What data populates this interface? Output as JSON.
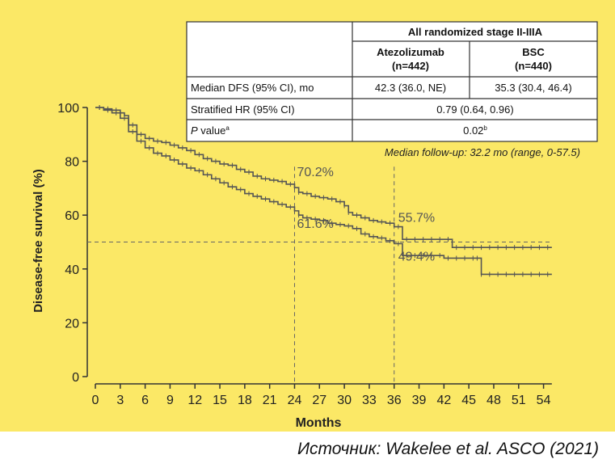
{
  "chart_data": {
    "type": "line",
    "title": "",
    "xlabel": "Months",
    "ylabel": "Disease-free survival (%)",
    "xlim": [
      0,
      55
    ],
    "ylim": [
      0,
      100
    ],
    "xticks": [
      "0",
      "3",
      "6",
      "9",
      "12",
      "15",
      "18",
      "21",
      "24",
      "27",
      "30",
      "33",
      "36",
      "39",
      "42",
      "45",
      "48",
      "51",
      "54"
    ],
    "yticks": [
      "0",
      "20",
      "40",
      "60",
      "80",
      "100"
    ],
    "grid": false,
    "reference_lines": {
      "y": 50,
      "x": [
        24,
        36
      ]
    },
    "series": [
      {
        "name": "Atezolizumab",
        "x": [
          0,
          1,
          2,
          3,
          3.5,
          4,
          5,
          6,
          7,
          8,
          9,
          10,
          11,
          12,
          13,
          14,
          15,
          16,
          17,
          18,
          19,
          20,
          21,
          22,
          23,
          24,
          24.5,
          25,
          26,
          27,
          28,
          29,
          30,
          30.5,
          31,
          32,
          33,
          34,
          35,
          36,
          37,
          38,
          39,
          40,
          41,
          42,
          43,
          44,
          45,
          46,
          47,
          48,
          49,
          50,
          51,
          52,
          53,
          54,
          55
        ],
        "y": [
          100,
          99.5,
          99,
          98,
          97,
          93.5,
          90,
          88.5,
          87.5,
          87,
          86,
          85,
          84,
          82.5,
          81,
          80,
          79,
          78.5,
          77,
          76,
          74.5,
          73.5,
          73,
          72.5,
          71.5,
          70.2,
          68.5,
          68,
          67,
          66.5,
          66,
          65,
          63.5,
          61,
          60,
          59,
          58,
          57.5,
          57,
          55.7,
          51,
          51,
          51,
          51,
          51,
          51,
          48,
          48,
          48,
          48,
          48,
          48,
          48,
          48,
          48,
          48,
          48,
          48,
          48
        ]
      },
      {
        "name": "BSC",
        "x": [
          0,
          1,
          2,
          3,
          4,
          5,
          6,
          7,
          8,
          9,
          10,
          11,
          12,
          13,
          14,
          15,
          16,
          17,
          18,
          19,
          20,
          21,
          22,
          23,
          24,
          24.5,
          25,
          26,
          27,
          28,
          29,
          30,
          31,
          32,
          33,
          34,
          35,
          36,
          37,
          38,
          39,
          40,
          41,
          42,
          43,
          44,
          45,
          46,
          46.5,
          47,
          48,
          49,
          50,
          51,
          52,
          53,
          54,
          55
        ],
        "y": [
          100,
          99,
          98,
          96,
          91,
          87.5,
          85,
          83,
          82,
          80.5,
          79,
          77.5,
          76.5,
          75,
          73.5,
          72,
          70.5,
          69.5,
          68,
          67,
          66,
          65,
          64,
          63,
          61.6,
          60,
          59,
          58.5,
          58,
          57,
          56.5,
          56,
          55,
          53,
          52,
          51.5,
          50.5,
          49.4,
          45,
          45,
          45,
          45,
          45,
          44,
          44,
          44,
          44,
          44,
          38,
          38,
          38,
          38,
          38,
          38,
          38,
          38,
          38,
          38
        ]
      }
    ],
    "annotations": [
      {
        "text": "70.2%",
        "x": 24,
        "y": 70.2
      },
      {
        "text": "55.7%",
        "x": 36,
        "y": 55.7
      },
      {
        "text": "61.6%",
        "x": 24,
        "y": 61.6
      },
      {
        "text": "49.4%",
        "x": 36,
        "y": 49.4
      }
    ],
    "followup_note": "Median follow-up: 32.2 mo (range, 0-57.5)",
    "table": {
      "group_header": "All randomized stage II-IIIA",
      "arms": [
        {
          "name": "Atezolizumab",
          "n": "(n=442)"
        },
        {
          "name": "BSC",
          "n": "(n=440)"
        }
      ],
      "rows": [
        {
          "label": "Median DFS (95% CI), mo",
          "values": [
            "42.3 (36.0, NE)",
            "35.3 (30.4, 46.4)"
          ]
        },
        {
          "label": "Stratified HR (95% CI)",
          "values": [
            "0.79 (0.64, 0.96)"
          ]
        },
        {
          "label_italic": "P",
          "label_rest": " value",
          "label_sup": "a",
          "value": "0.02",
          "value_sup": "b"
        }
      ]
    }
  },
  "source_text": "Источник: Wakelee et al. ASCO (2021)",
  "colors": {
    "background": "#fbe866",
    "line": "#555555",
    "dashed": "#666666",
    "text": "#222222"
  }
}
